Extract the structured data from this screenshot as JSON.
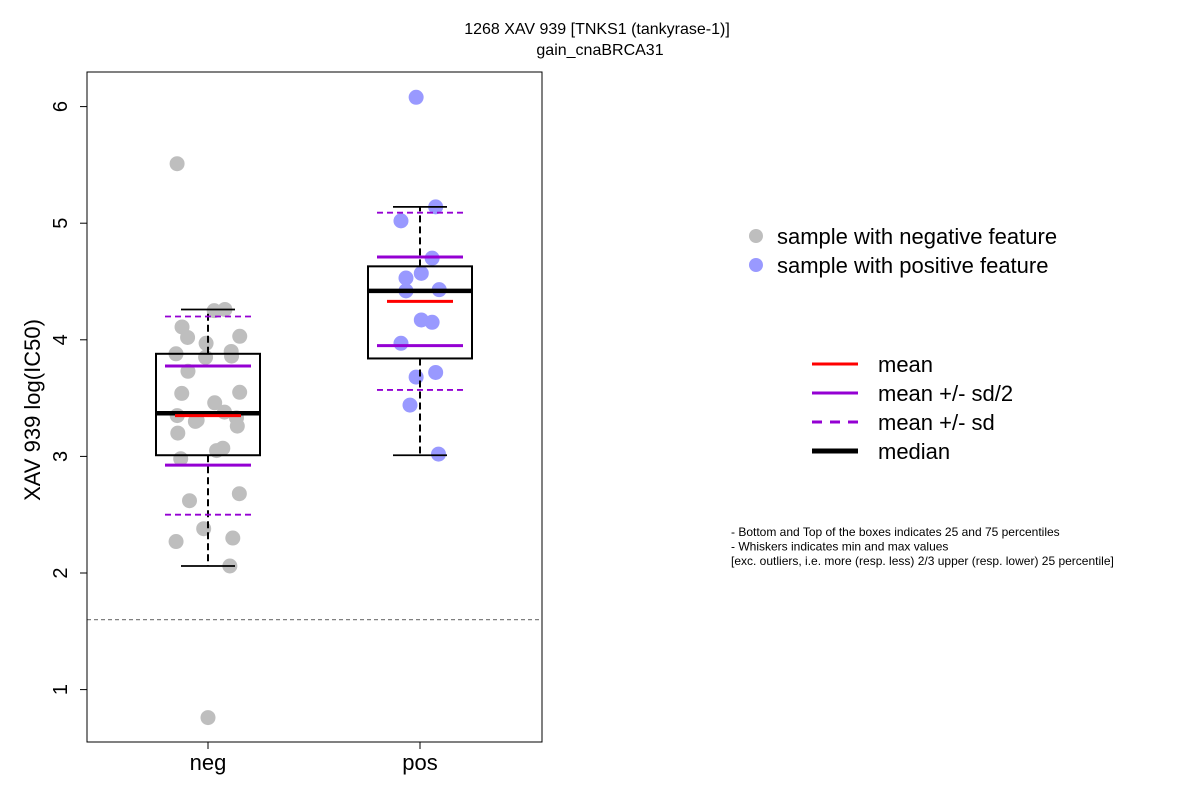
{
  "chart_data": {
    "type": "box",
    "title": "1268 XAV 939 [TNKS1 (tankyrase-1)]",
    "subtitle": "gain_cnaBRCA31",
    "ylabel": "XAV 939 log(IC50)",
    "ylim": [
      0.45,
      6.3
    ],
    "yticks": [
      1,
      2,
      3,
      4,
      5,
      6
    ],
    "categories": [
      "neg",
      "pos"
    ],
    "reference_line": 1.6,
    "groups": [
      {
        "category": "neg",
        "point_color": "#bebebe",
        "stats": {
          "q1": 3.01,
          "median": 3.37,
          "q3": 3.88,
          "mean": 3.35,
          "sd": 0.85,
          "whisker_low": 2.06,
          "whisker_high": 4.26
        },
        "points": [
          5.51,
          4.26,
          4.25,
          4.11,
          4.03,
          4.02,
          3.97,
          3.9,
          3.88,
          3.86,
          3.85,
          3.73,
          3.55,
          3.54,
          3.46,
          3.38,
          3.35,
          3.33,
          3.31,
          3.3,
          3.26,
          3.2,
          3.07,
          3.05,
          2.98,
          2.68,
          2.62,
          2.38,
          2.3,
          2.27,
          2.06,
          0.76
        ]
      },
      {
        "category": "pos",
        "point_color": "#9999ff",
        "stats": {
          "q1": 3.84,
          "median": 4.42,
          "q3": 4.63,
          "mean": 4.33,
          "sd": 0.76,
          "whisker_low": 3.01,
          "whisker_high": 5.14
        },
        "points": [
          6.08,
          5.14,
          5.02,
          4.7,
          4.57,
          4.53,
          4.43,
          4.42,
          4.17,
          4.15,
          3.97,
          3.72,
          3.68,
          3.44,
          3.02
        ]
      }
    ],
    "legend_points": [
      {
        "label": "sample with negative feature",
        "color": "#bebebe"
      },
      {
        "label": "sample with positive feature",
        "color": "#9999ff"
      }
    ],
    "legend_lines": [
      {
        "label": "mean",
        "color": "#ff0000",
        "style": "solid"
      },
      {
        "label": "mean +/- sd/2",
        "color": "#9400d3",
        "style": "solid"
      },
      {
        "label": "mean +/- sd",
        "color": "#9400d3",
        "style": "dashed"
      },
      {
        "label": "median",
        "color": "#000000",
        "style": "thick"
      }
    ],
    "notes": [
      "- Bottom and Top of the boxes indicates 25 and 75 percentiles",
      "- Whiskers indicates min and max values",
      "[exc. outliers, i.e. more (resp. less) 2/3 upper (resp. lower) 25 percentile]"
    ]
  }
}
